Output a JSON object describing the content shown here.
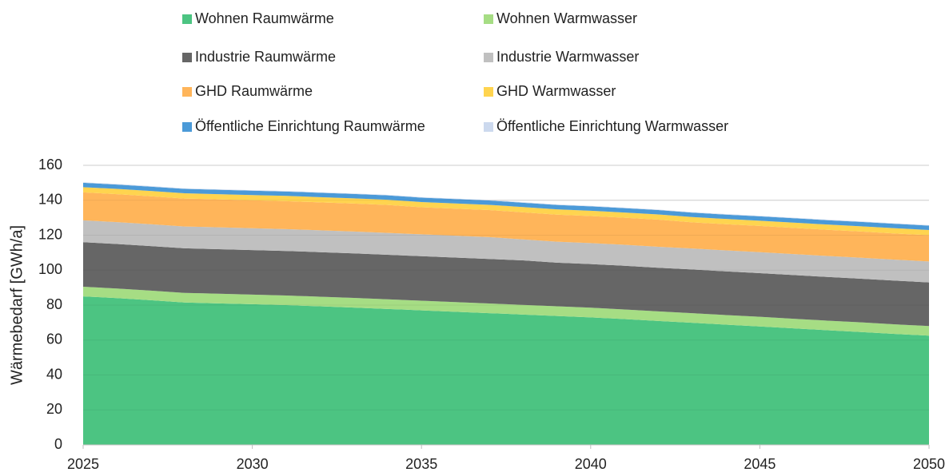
{
  "chart_data": {
    "type": "stacked_area",
    "y_label": "Wärmebedarf [GWh/a]",
    "x": [
      2025,
      2026,
      2027,
      2028,
      2029,
      2030,
      2031,
      2032,
      2033,
      2034,
      2035,
      2036,
      2037,
      2038,
      2039,
      2040,
      2041,
      2042,
      2043,
      2044,
      2045,
      2046,
      2047,
      2048,
      2049,
      2050
    ],
    "xlim": [
      2025,
      2050
    ],
    "xticks": [
      2025,
      2030,
      2035,
      2040,
      2045,
      2050
    ],
    "ylim": [
      0,
      160
    ],
    "yticks": [
      0,
      20,
      40,
      60,
      80,
      100,
      120,
      140,
      160
    ],
    "grid": true,
    "legend": "top",
    "series": [
      {
        "name": "Wohnen Raumwärme",
        "color": "#4cc482",
        "values": [
          85,
          84,
          82.8,
          81.5,
          81,
          80.5,
          80,
          79.3,
          78.6,
          77.8,
          77,
          76.2,
          75.4,
          74.6,
          73.8,
          73,
          72,
          70.9,
          69.9,
          68.8,
          67.8,
          66.7,
          65.6,
          64.6,
          63.5,
          62.5
        ]
      },
      {
        "name": "Wohnen Warmwasser",
        "color": "#a6dd84",
        "values": [
          5.5,
          5.5,
          5.5,
          5.5,
          5.5,
          5.5,
          5.5,
          5.5,
          5.5,
          5.5,
          5.5,
          5.5,
          5.5,
          5.5,
          5.5,
          5.5,
          5.5,
          5.5,
          5.5,
          5.5,
          5.5,
          5.5,
          5.5,
          5.5,
          5.5,
          5.5
        ]
      },
      {
        "name": "Industrie Raumwärme",
        "color": "#666666",
        "values": [
          25.5,
          25.5,
          25.5,
          25.5,
          25.5,
          25.5,
          25.5,
          25.5,
          25.5,
          25.5,
          25.5,
          25.5,
          25.5,
          25.5,
          25,
          25,
          25,
          25,
          25,
          25,
          25,
          25,
          25,
          25,
          25,
          25
        ]
      },
      {
        "name": "Industrie Warmwasser",
        "color": "#c0c0c0",
        "values": [
          12.5,
          12.5,
          12.5,
          12.5,
          12.5,
          12.5,
          12.5,
          12.5,
          12.5,
          12.5,
          12.5,
          12.5,
          12.5,
          12,
          12,
          12,
          12,
          12,
          12,
          12,
          12,
          12,
          12,
          12,
          12,
          12
        ]
      },
      {
        "name": "GHD Raumwärme",
        "color": "#ffb55a",
        "values": [
          16,
          16,
          16,
          16,
          16,
          16,
          16,
          16,
          16,
          16,
          15.5,
          15.5,
          15.5,
          15.5,
          15.5,
          15.5,
          15.5,
          15.5,
          15,
          15,
          15,
          15,
          15,
          15,
          15,
          15
        ]
      },
      {
        "name": "GHD Warmwasser",
        "color": "#ffd44f",
        "values": [
          3,
          3,
          3,
          3,
          3,
          3,
          3,
          3,
          3,
          3,
          3,
          3,
          3,
          3,
          3,
          3,
          3,
          3,
          3,
          3,
          3,
          3,
          3,
          3,
          3,
          3
        ]
      },
      {
        "name": "Öffentliche Einrichtung Raumwärme",
        "color": "#4b9ad8",
        "values": [
          2.5,
          2.5,
          2.5,
          2.5,
          2.5,
          2.5,
          2.5,
          2.5,
          2.5,
          2.5,
          2.5,
          2.5,
          2.5,
          2.5,
          2.5,
          2.5,
          2.5,
          2.5,
          2.5,
          2.5,
          2.5,
          2.5,
          2.5,
          2.5,
          2.5,
          2.5
        ]
      },
      {
        "name": "Öffentliche Einrichtung Warmwasser",
        "color": "#ccd9ee",
        "values": [
          0.3,
          0.3,
          0.3,
          0.3,
          0.3,
          0.3,
          0.3,
          0.3,
          0.3,
          0.3,
          0.3,
          0.3,
          0.3,
          0.3,
          0.3,
          0.3,
          0.3,
          0.3,
          0.3,
          0.3,
          0.3,
          0.3,
          0.3,
          0.3,
          0.3,
          0.3
        ]
      }
    ]
  }
}
